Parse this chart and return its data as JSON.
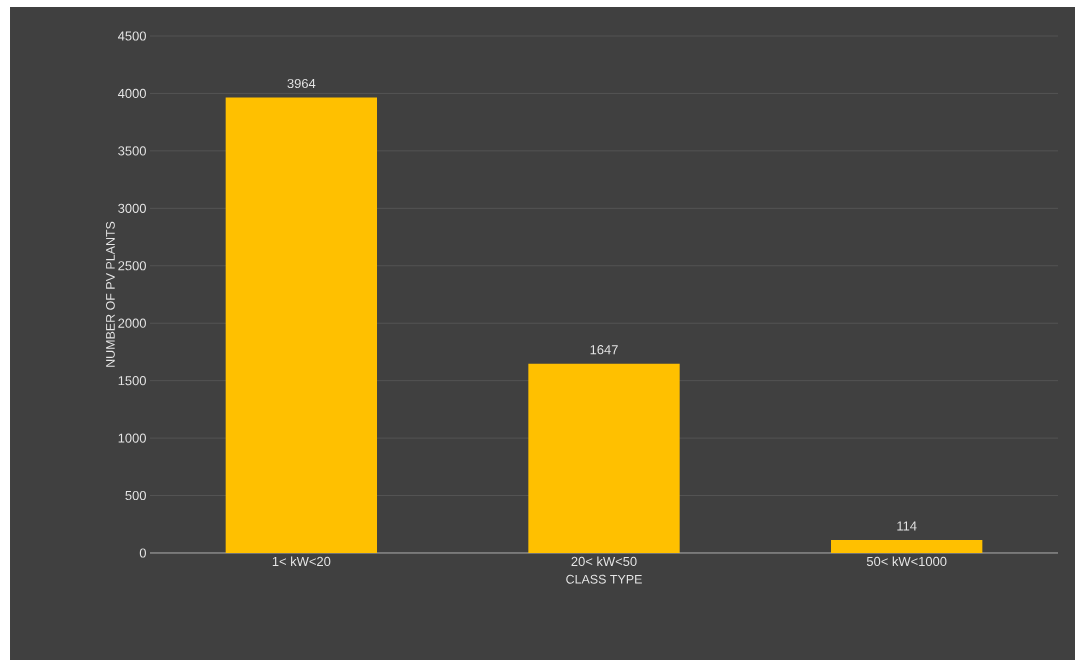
{
  "chart_data": {
    "type": "bar",
    "xlabel": "CLASS TYPE",
    "ylabel": "NUMBER OF PV PLANTS",
    "categories": [
      "1< kW<20",
      "20< kW<50",
      "50< kW<1000"
    ],
    "values": [
      3964,
      1647,
      114
    ],
    "color": "#ffc000",
    "ylim": [
      0,
      4500
    ],
    "yticks": [
      0,
      500,
      1000,
      1500,
      2000,
      2500,
      3000,
      3500,
      4000,
      4500
    ],
    "grid": "y",
    "data_labels": true
  }
}
